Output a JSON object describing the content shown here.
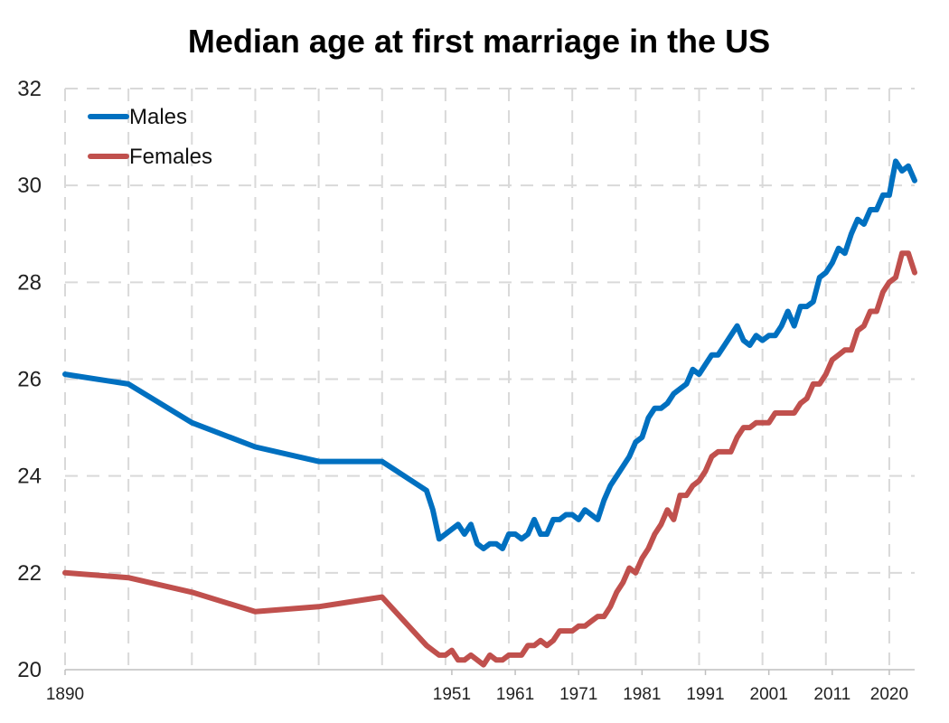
{
  "chart_data": {
    "type": "line",
    "title": "Median age at first marriage in the US",
    "xlabel": "",
    "ylabel": "",
    "ylim": [
      20,
      32
    ],
    "yticks": [
      20,
      22,
      24,
      26,
      28,
      30,
      32
    ],
    "xticks": [
      1890,
      1951,
      1961,
      1971,
      1981,
      1991,
      2001,
      2011,
      2020
    ],
    "grid": true,
    "legend": "top-left",
    "series": [
      {
        "name": "Males",
        "color": "#0070C0",
        "points": [
          [
            1890,
            26.1
          ],
          [
            1900,
            25.9
          ],
          [
            1910,
            25.1
          ],
          [
            1920,
            24.6
          ],
          [
            1930,
            24.3
          ],
          [
            1940,
            24.3
          ],
          [
            1947,
            23.7
          ],
          [
            1948,
            23.3
          ],
          [
            1949,
            22.7
          ],
          [
            1950,
            22.8
          ],
          [
            1951,
            22.9
          ],
          [
            1952,
            23.0
          ],
          [
            1953,
            22.8
          ],
          [
            1954,
            23.0
          ],
          [
            1955,
            22.6
          ],
          [
            1956,
            22.5
          ],
          [
            1957,
            22.6
          ],
          [
            1958,
            22.6
          ],
          [
            1959,
            22.5
          ],
          [
            1960,
            22.8
          ],
          [
            1961,
            22.8
          ],
          [
            1962,
            22.7
          ],
          [
            1963,
            22.8
          ],
          [
            1964,
            23.1
          ],
          [
            1965,
            22.8
          ],
          [
            1966,
            22.8
          ],
          [
            1967,
            23.1
          ],
          [
            1968,
            23.1
          ],
          [
            1969,
            23.2
          ],
          [
            1970,
            23.2
          ],
          [
            1971,
            23.1
          ],
          [
            1972,
            23.3
          ],
          [
            1973,
            23.2
          ],
          [
            1974,
            23.1
          ],
          [
            1975,
            23.5
          ],
          [
            1976,
            23.8
          ],
          [
            1977,
            24.0
          ],
          [
            1978,
            24.2
          ],
          [
            1979,
            24.4
          ],
          [
            1980,
            24.7
          ],
          [
            1981,
            24.8
          ],
          [
            1982,
            25.2
          ],
          [
            1983,
            25.4
          ],
          [
            1984,
            25.4
          ],
          [
            1985,
            25.5
          ],
          [
            1986,
            25.7
          ],
          [
            1987,
            25.8
          ],
          [
            1988,
            25.9
          ],
          [
            1989,
            26.2
          ],
          [
            1990,
            26.1
          ],
          [
            1991,
            26.3
          ],
          [
            1992,
            26.5
          ],
          [
            1993,
            26.5
          ],
          [
            1994,
            26.7
          ],
          [
            1995,
            26.9
          ],
          [
            1996,
            27.1
          ],
          [
            1997,
            26.8
          ],
          [
            1998,
            26.7
          ],
          [
            1999,
            26.9
          ],
          [
            2000,
            26.8
          ],
          [
            2001,
            26.9
          ],
          [
            2002,
            26.9
          ],
          [
            2003,
            27.1
          ],
          [
            2004,
            27.4
          ],
          [
            2005,
            27.1
          ],
          [
            2006,
            27.5
          ],
          [
            2007,
            27.5
          ],
          [
            2008,
            27.6
          ],
          [
            2009,
            28.1
          ],
          [
            2010,
            28.2
          ],
          [
            2011,
            28.4
          ],
          [
            2012,
            28.7
          ],
          [
            2013,
            28.6
          ],
          [
            2014,
            29.0
          ],
          [
            2015,
            29.3
          ],
          [
            2016,
            29.2
          ],
          [
            2017,
            29.5
          ],
          [
            2018,
            29.5
          ],
          [
            2019,
            29.8
          ],
          [
            2020,
            29.8
          ],
          [
            2021,
            30.5
          ],
          [
            2022,
            30.3
          ],
          [
            2023,
            30.4
          ],
          [
            2024,
            30.1
          ]
        ]
      },
      {
        "name": "Females",
        "color": "#C0504D",
        "points": [
          [
            1890,
            22.0
          ],
          [
            1900,
            21.9
          ],
          [
            1910,
            21.6
          ],
          [
            1920,
            21.2
          ],
          [
            1930,
            21.3
          ],
          [
            1940,
            21.5
          ],
          [
            1947,
            20.5
          ],
          [
            1948,
            20.4
          ],
          [
            1949,
            20.3
          ],
          [
            1950,
            20.3
          ],
          [
            1951,
            20.4
          ],
          [
            1952,
            20.2
          ],
          [
            1953,
            20.2
          ],
          [
            1954,
            20.3
          ],
          [
            1955,
            20.2
          ],
          [
            1956,
            20.1
          ],
          [
            1957,
            20.3
          ],
          [
            1958,
            20.2
          ],
          [
            1959,
            20.2
          ],
          [
            1960,
            20.3
          ],
          [
            1961,
            20.3
          ],
          [
            1962,
            20.3
          ],
          [
            1963,
            20.5
          ],
          [
            1964,
            20.5
          ],
          [
            1965,
            20.6
          ],
          [
            1966,
            20.5
          ],
          [
            1967,
            20.6
          ],
          [
            1968,
            20.8
          ],
          [
            1969,
            20.8
          ],
          [
            1970,
            20.8
          ],
          [
            1971,
            20.9
          ],
          [
            1972,
            20.9
          ],
          [
            1973,
            21.0
          ],
          [
            1974,
            21.1
          ],
          [
            1975,
            21.1
          ],
          [
            1976,
            21.3
          ],
          [
            1977,
            21.6
          ],
          [
            1978,
            21.8
          ],
          [
            1979,
            22.1
          ],
          [
            1980,
            22.0
          ],
          [
            1981,
            22.3
          ],
          [
            1982,
            22.5
          ],
          [
            1983,
            22.8
          ],
          [
            1984,
            23.0
          ],
          [
            1985,
            23.3
          ],
          [
            1986,
            23.1
          ],
          [
            1987,
            23.6
          ],
          [
            1988,
            23.6
          ],
          [
            1989,
            23.8
          ],
          [
            1990,
            23.9
          ],
          [
            1991,
            24.1
          ],
          [
            1992,
            24.4
          ],
          [
            1993,
            24.5
          ],
          [
            1994,
            24.5
          ],
          [
            1995,
            24.5
          ],
          [
            1996,
            24.8
          ],
          [
            1997,
            25.0
          ],
          [
            1998,
            25.0
          ],
          [
            1999,
            25.1
          ],
          [
            2000,
            25.1
          ],
          [
            2001,
            25.1
          ],
          [
            2002,
            25.3
          ],
          [
            2003,
            25.3
          ],
          [
            2004,
            25.3
          ],
          [
            2005,
            25.3
          ],
          [
            2006,
            25.5
          ],
          [
            2007,
            25.6
          ],
          [
            2008,
            25.9
          ],
          [
            2009,
            25.9
          ],
          [
            2010,
            26.1
          ],
          [
            2011,
            26.4
          ],
          [
            2012,
            26.5
          ],
          [
            2013,
            26.6
          ],
          [
            2014,
            26.6
          ],
          [
            2015,
            27.0
          ],
          [
            2016,
            27.1
          ],
          [
            2017,
            27.4
          ],
          [
            2018,
            27.4
          ],
          [
            2019,
            27.8
          ],
          [
            2020,
            28.0
          ],
          [
            2021,
            28.1
          ],
          [
            2022,
            28.6
          ],
          [
            2023,
            28.6
          ],
          [
            2024,
            28.2
          ]
        ]
      }
    ]
  }
}
